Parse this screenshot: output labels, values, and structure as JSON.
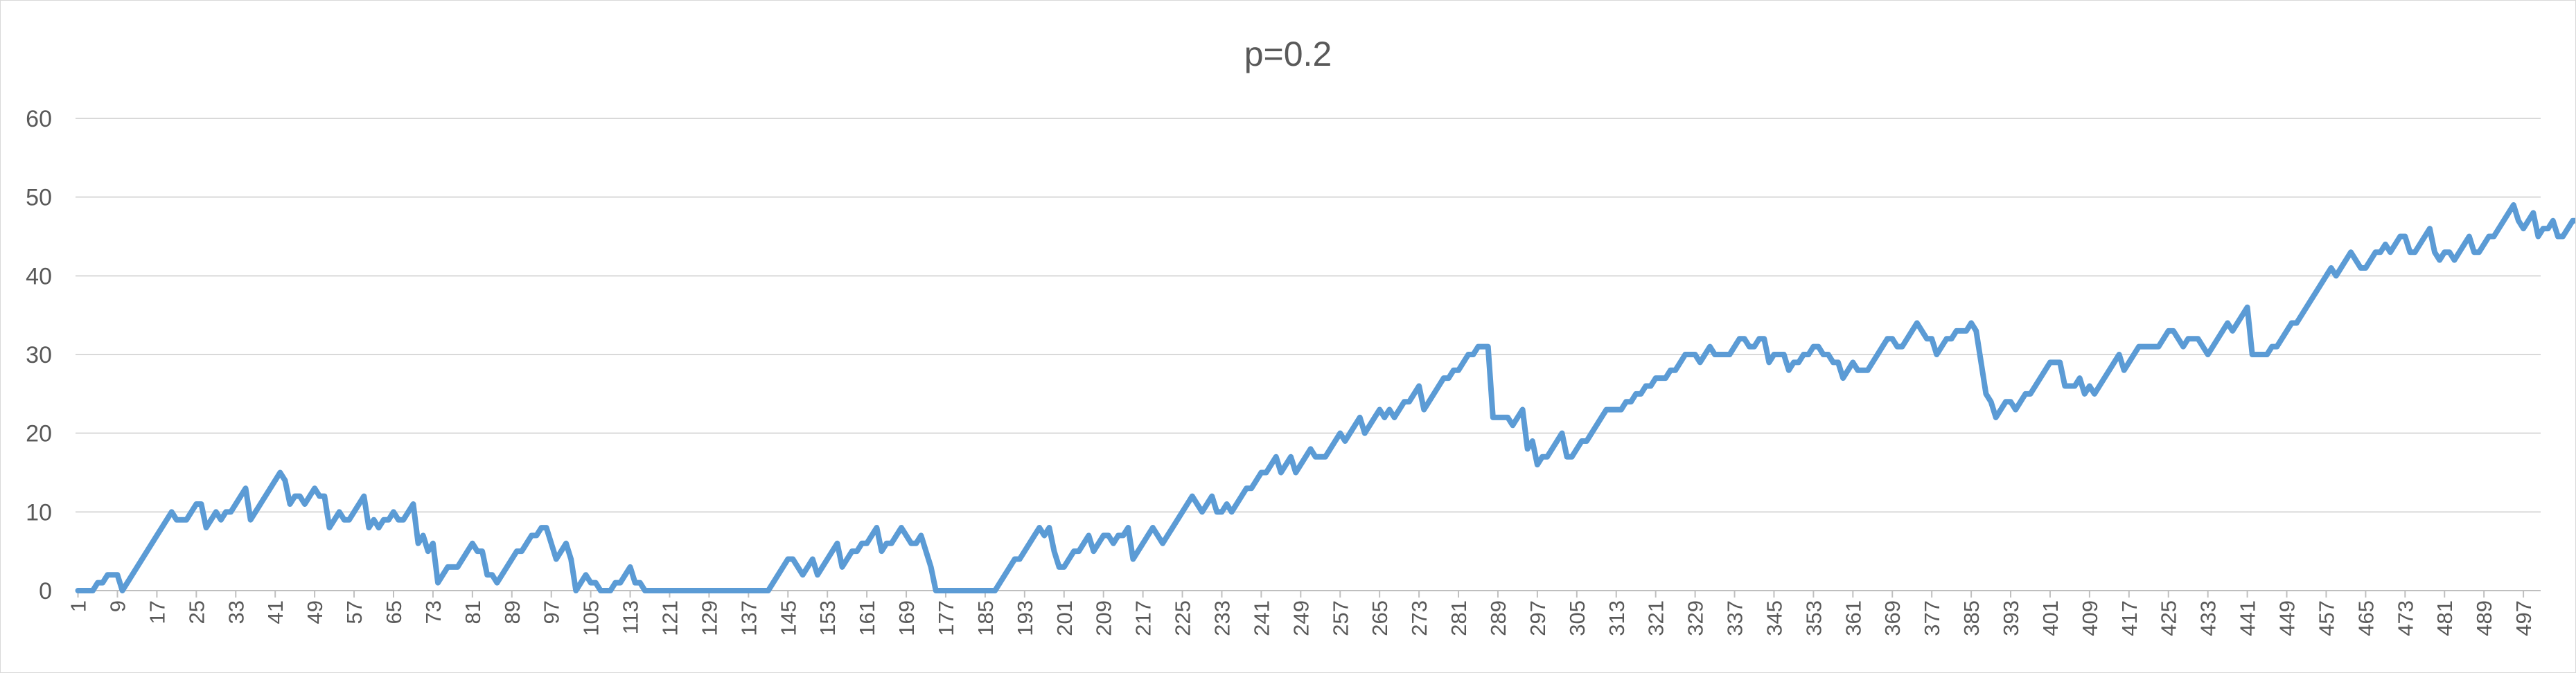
{
  "chart_data": {
    "type": "line",
    "title": "p=0.2",
    "xlabel": "",
    "ylabel": "",
    "ylim": [
      0,
      60
    ],
    "yticks": [
      0,
      10,
      20,
      30,
      40,
      50,
      60
    ],
    "x_start": 1,
    "x_end": 500,
    "x_tick_labels": [
      "1",
      "9",
      "17",
      "25",
      "33",
      "41",
      "49",
      "57",
      "65",
      "73",
      "81",
      "89",
      "97",
      "105",
      "113",
      "121",
      "129",
      "137",
      "145",
      "153",
      "161",
      "169",
      "177",
      "185",
      "193",
      "201",
      "209",
      "217",
      "225",
      "233",
      "241",
      "249",
      "257",
      "265",
      "273",
      "281",
      "289",
      "297",
      "305",
      "313",
      "321",
      "329",
      "337",
      "345",
      "353",
      "361",
      "369",
      "377",
      "385",
      "393",
      "401",
      "409",
      "417",
      "425",
      "433",
      "441",
      "449",
      "457",
      "465",
      "473",
      "481",
      "489",
      "497"
    ],
    "grid": true,
    "legend": "none",
    "series_color": "#5b9bd5",
    "series": [
      {
        "values": [
          0,
          0,
          0,
          0,
          1,
          1,
          2,
          2,
          2,
          0,
          1,
          2,
          3,
          4,
          5,
          6,
          7,
          8,
          9,
          10,
          9,
          9,
          9,
          10,
          11,
          11,
          8,
          9,
          10,
          9,
          10,
          10,
          11,
          12,
          13,
          9,
          10,
          11,
          12,
          13,
          14,
          15,
          14,
          11,
          12,
          12,
          11,
          12,
          13,
          12,
          12,
          8,
          9,
          10,
          9,
          9,
          10,
          11,
          12,
          8,
          9,
          8,
          9,
          9,
          10,
          9,
          9,
          10,
          11,
          6,
          7,
          5,
          6,
          1,
          2,
          3,
          3,
          3,
          4,
          5,
          6,
          5,
          5,
          2,
          2,
          1,
          2,
          3,
          4,
          5,
          5,
          6,
          7,
          7,
          8,
          8,
          6,
          4,
          5,
          6,
          4,
          0,
          1,
          2,
          1,
          1,
          0,
          0,
          0,
          1,
          1,
          2,
          3,
          1,
          1,
          0,
          0,
          0,
          0,
          0,
          0,
          0,
          0,
          0,
          0,
          0,
          0,
          0,
          0,
          0,
          0,
          0,
          0,
          0,
          0,
          0,
          0,
          0,
          0,
          0,
          0,
          1,
          2,
          3,
          4,
          4,
          3,
          2,
          3,
          4,
          2,
          3,
          4,
          5,
          6,
          3,
          4,
          5,
          5,
          6,
          6,
          7,
          8,
          5,
          6,
          6,
          7,
          8,
          7,
          6,
          6,
          7,
          5,
          3,
          0,
          0,
          0,
          0,
          0,
          0,
          0,
          0,
          0,
          0,
          0,
          0,
          0,
          1,
          2,
          3,
          4,
          4,
          5,
          6,
          7,
          8,
          7,
          8,
          5,
          3,
          3,
          4,
          5,
          5,
          6,
          7,
          5,
          6,
          7,
          7,
          6,
          7,
          7,
          8,
          4,
          5,
          6,
          7,
          8,
          7,
          6,
          7,
          8,
          9,
          10,
          11,
          12,
          11,
          10,
          11,
          12,
          10,
          10,
          11,
          10,
          11,
          12,
          13,
          13,
          14,
          15,
          15,
          16,
          17,
          15,
          16,
          17,
          15,
          16,
          17,
          18,
          17,
          17,
          17,
          18,
          19,
          20,
          19,
          20,
          21,
          22,
          20,
          21,
          22,
          23,
          22,
          23,
          22,
          23,
          24,
          24,
          25,
          26,
          23,
          24,
          25,
          26,
          27,
          27,
          28,
          28,
          29,
          30,
          30,
          31,
          31,
          31,
          22,
          22,
          22,
          22,
          21,
          22,
          23,
          18,
          19,
          16,
          17,
          17,
          18,
          19,
          20,
          17,
          17,
          18,
          19,
          19,
          20,
          21,
          22,
          23,
          23,
          23,
          23,
          24,
          24,
          25,
          25,
          26,
          26,
          27,
          27,
          27,
          28,
          28,
          29,
          30,
          30,
          30,
          29,
          30,
          31,
          30,
          30,
          30,
          30,
          31,
          32,
          32,
          31,
          31,
          32,
          32,
          29,
          30,
          30,
          30,
          28,
          29,
          29,
          30,
          30,
          31,
          31,
          30,
          30,
          29,
          29,
          27,
          28,
          29,
          28,
          28,
          28,
          29,
          30,
          31,
          32,
          32,
          31,
          31,
          32,
          33,
          34,
          33,
          32,
          32,
          30,
          31,
          32,
          32,
          33,
          33,
          33,
          34,
          33,
          29,
          25,
          24,
          22,
          23,
          24,
          24,
          23,
          24,
          25,
          25,
          26,
          27,
          28,
          29,
          29,
          29,
          26,
          26,
          26,
          27,
          25,
          26,
          25,
          26,
          27,
          28,
          29,
          30,
          28,
          29,
          30,
          31,
          31,
          31,
          31,
          31,
          32,
          33,
          33,
          32,
          31,
          32,
          32,
          32,
          31,
          30,
          31,
          32,
          33,
          34,
          33,
          34,
          35,
          36,
          30,
          30,
          30,
          30,
          31,
          31,
          32,
          33,
          34,
          34,
          35,
          36,
          37,
          38,
          39,
          40,
          41,
          40,
          41,
          42,
          43,
          42,
          41,
          41,
          42,
          43,
          43,
          44,
          43,
          44,
          45,
          45,
          43,
          43,
          44,
          45,
          46,
          43,
          42,
          43,
          43,
          42,
          43,
          44,
          45,
          43,
          43,
          44,
          45,
          45,
          46,
          47,
          48,
          49,
          47,
          46,
          47,
          48,
          45,
          46,
          46,
          47,
          45,
          45,
          46,
          47,
          47
        ]
      }
    ]
  }
}
